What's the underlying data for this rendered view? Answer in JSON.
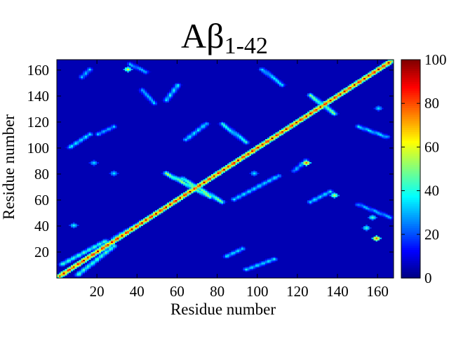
{
  "chart_data": {
    "type": "heatmap",
    "title": {
      "main": "Aβ",
      "subscript": "1-42"
    },
    "xlabel": "Residue number",
    "ylabel": "Residue number",
    "xlim": [
      0,
      168
    ],
    "ylim": [
      0,
      168
    ],
    "xticks": [
      20,
      40,
      60,
      80,
      100,
      120,
      140,
      160
    ],
    "yticks": [
      20,
      40,
      60,
      80,
      100,
      120,
      140,
      160
    ],
    "colorbar": {
      "range": [
        0,
        100
      ],
      "ticks": [
        0,
        20,
        40,
        60,
        80,
        100
      ],
      "colormap": "jet"
    },
    "background_value": 5,
    "features": [
      {
        "kind": "band",
        "from": [
          1,
          1
        ],
        "to": [
          166,
          166
        ],
        "peak": 100,
        "width": 1.5,
        "note": "main diagonal"
      },
      {
        "kind": "band",
        "from": [
          2,
          10
        ],
        "to": [
          24,
          28
        ],
        "peak": 50
      },
      {
        "kind": "band",
        "from": [
          10,
          2
        ],
        "to": [
          28,
          24
        ],
        "peak": 50
      },
      {
        "kind": "band",
        "from": [
          28,
          30
        ],
        "to": [
          44,
          44
        ],
        "peak": 45
      },
      {
        "kind": "band",
        "from": [
          54,
          80
        ],
        "to": [
          76,
          62
        ],
        "peak": 60,
        "note": "antidiagonal cross"
      },
      {
        "kind": "band",
        "from": [
          62,
          76
        ],
        "to": [
          82,
          58
        ],
        "peak": 55
      },
      {
        "kind": "band",
        "from": [
          126,
          140
        ],
        "to": [
          138,
          126
        ],
        "peak": 55,
        "note": "antidiagonal cross"
      },
      {
        "kind": "band",
        "from": [
          82,
          118
        ],
        "to": [
          94,
          104
        ],
        "peak": 45
      },
      {
        "kind": "band",
        "from": [
          64,
          106
        ],
        "to": [
          74,
          118
        ],
        "peak": 40
      },
      {
        "kind": "band",
        "from": [
          6,
          100
        ],
        "to": [
          16,
          110
        ],
        "peak": 40
      },
      {
        "kind": "band",
        "from": [
          84,
          16
        ],
        "to": [
          92,
          22
        ],
        "peak": 40
      },
      {
        "kind": "band",
        "from": [
          94,
          6
        ],
        "to": [
          108,
          14
        ],
        "peak": 40
      },
      {
        "kind": "band",
        "from": [
          102,
          160
        ],
        "to": [
          112,
          148
        ],
        "peak": 40
      },
      {
        "kind": "band",
        "from": [
          88,
          60
        ],
        "to": [
          110,
          78
        ],
        "peak": 40
      },
      {
        "kind": "band",
        "from": [
          126,
          58
        ],
        "to": [
          136,
          66
        ],
        "peak": 40
      },
      {
        "kind": "band",
        "from": [
          150,
          56
        ],
        "to": [
          166,
          46
        ],
        "peak": 35
      },
      {
        "kind": "band",
        "from": [
          150,
          116
        ],
        "to": [
          164,
          108
        ],
        "peak": 40
      },
      {
        "kind": "band",
        "from": [
          118,
          82
        ],
        "to": [
          124,
          90
        ],
        "peak": 35
      },
      {
        "kind": "band",
        "from": [
          20,
          110
        ],
        "to": [
          28,
          116
        ],
        "peak": 35
      },
      {
        "kind": "band",
        "from": [
          54,
          136
        ],
        "to": [
          60,
          148
        ],
        "peak": 40
      },
      {
        "kind": "band",
        "from": [
          42,
          144
        ],
        "to": [
          48,
          134
        ],
        "peak": 35
      },
      {
        "kind": "band",
        "from": [
          36,
          164
        ],
        "to": [
          44,
          158
        ],
        "peak": 35
      },
      {
        "kind": "band",
        "from": [
          12,
          154
        ],
        "to": [
          16,
          160
        ],
        "peak": 35
      },
      {
        "kind": "spot",
        "at": [
          35,
          160
        ],
        "peak": 60
      },
      {
        "kind": "spot",
        "at": [
          138,
          63
        ],
        "peak": 60
      },
      {
        "kind": "spot",
        "at": [
          124,
          88
        ],
        "peak": 80
      },
      {
        "kind": "spot",
        "at": [
          159,
          30
        ],
        "peak": 80
      },
      {
        "kind": "spot",
        "at": [
          154,
          38
        ],
        "peak": 45
      },
      {
        "kind": "spot",
        "at": [
          157,
          46
        ],
        "peak": 45
      },
      {
        "kind": "spot",
        "at": [
          32,
          32
        ],
        "peak": 45
      },
      {
        "kind": "spot",
        "at": [
          8,
          40
        ],
        "peak": 40
      },
      {
        "kind": "spot",
        "at": [
          18,
          88
        ],
        "peak": 35
      },
      {
        "kind": "spot",
        "at": [
          28,
          80
        ],
        "peak": 35
      },
      {
        "kind": "spot",
        "at": [
          98,
          80
        ],
        "peak": 35
      },
      {
        "kind": "spot",
        "at": [
          150,
          150
        ],
        "peak": 35
      },
      {
        "kind": "spot",
        "at": [
          160,
          130
        ],
        "peak": 35
      }
    ]
  }
}
